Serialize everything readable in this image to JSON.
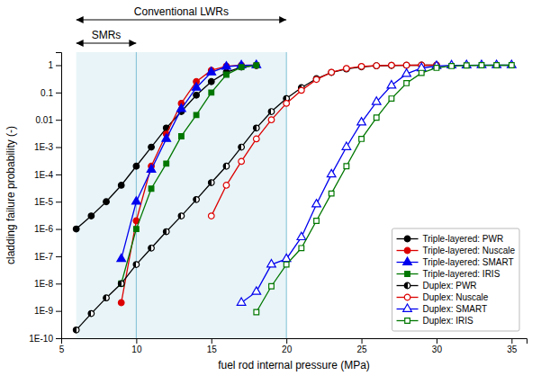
{
  "chart_data": {
    "type": "line",
    "xlabel": "fuel rod internal pressure (MPa)",
    "ylabel": "cladding failure probability (-)",
    "log": "y",
    "grid": false,
    "legend": "lower right",
    "xlim": [
      5,
      36
    ],
    "xticks": [
      5,
      10,
      15,
      20,
      25,
      30,
      35
    ],
    "ylim": [
      1e-10,
      3
    ],
    "yticks": [
      {
        "value": 1e-10,
        "label": "1E-10"
      },
      {
        "value": 1e-09,
        "label": "1E-9"
      },
      {
        "value": 1e-08,
        "label": "1E-8"
      },
      {
        "value": 1e-07,
        "label": "1E-7"
      },
      {
        "value": 1e-06,
        "label": "1E-6"
      },
      {
        "value": 1e-05,
        "label": "1E-5"
      },
      {
        "value": 0.0001,
        "label": "1E-4"
      },
      {
        "value": 0.001,
        "label": "1E-3"
      },
      0.01,
      0.1,
      1
    ],
    "shaded_regions": [
      {
        "x0": 6.0,
        "x1": 20.0,
        "color": "#e8f4f8"
      }
    ],
    "vlines": [
      {
        "x": 10.0,
        "color": "#7fbfd4"
      },
      {
        "x": 20.0,
        "color": "#7fbfd4"
      }
    ],
    "annotations": [
      {
        "text": "Conventional LWRs",
        "x0": 6.0,
        "x1": 20.0
      },
      {
        "text": "SMRs",
        "x0": 6.0,
        "x1": 10.0
      }
    ],
    "series": [
      {
        "name": "Triple-layered: PWR",
        "color": "#000000",
        "marker": "circle",
        "line_style": "solid",
        "x": [
          6,
          7,
          8,
          9,
          10,
          11,
          12,
          13,
          14,
          15,
          16,
          17,
          18
        ],
        "values": [
          1e-06,
          3e-06,
          1e-05,
          4e-05,
          0.0002,
          0.001,
          0.005,
          0.02,
          0.08,
          0.25,
          0.55,
          0.85,
          0.97
        ]
      },
      {
        "name": "Triple-layered: Nuscale",
        "color": "#dd0000",
        "marker": "circle",
        "line_style": "solid",
        "x": [
          9,
          10,
          11,
          12,
          13,
          14,
          15,
          16,
          17,
          18
        ],
        "values": [
          2e-09,
          2e-06,
          0.0002,
          0.003,
          0.04,
          0.25,
          0.65,
          0.92,
          0.99,
          1.0
        ]
      },
      {
        "name": "Triple-layered: SMART",
        "color": "#0000ee",
        "marker": "triangle",
        "line_style": "solid",
        "x": [
          9,
          10,
          11,
          12,
          13,
          14,
          15,
          16,
          17,
          18
        ],
        "values": [
          8e-08,
          1e-05,
          0.00015,
          0.002,
          0.025,
          0.15,
          0.55,
          0.88,
          0.98,
          1.0
        ]
      },
      {
        "name": "Triple-layered: IRIS",
        "color": "#007700",
        "marker": "square",
        "line_style": "solid",
        "x": [
          9,
          10,
          11,
          12,
          13,
          14,
          15,
          16,
          17,
          18
        ],
        "values": [
          1e-08,
          1e-06,
          3e-05,
          0.00025,
          0.0025,
          0.015,
          0.1,
          0.45,
          0.85,
          0.99
        ]
      },
      {
        "name": "Duplex: PWR",
        "color": "#000000",
        "marker": "circle-half-left",
        "line_style": "solid",
        "x": [
          6,
          7,
          8,
          9,
          10,
          11,
          12,
          13,
          14,
          15,
          16,
          17,
          18,
          19,
          20,
          21,
          22,
          23,
          24,
          25,
          26,
          27,
          28,
          29,
          30
        ],
        "values": [
          2e-10,
          8e-10,
          3e-09,
          1e-08,
          5e-08,
          2e-07,
          8e-07,
          3e-06,
          1.2e-05,
          5e-05,
          0.0002,
          0.001,
          0.005,
          0.02,
          0.06,
          0.15,
          0.32,
          0.54,
          0.73,
          0.87,
          0.95,
          0.98,
          0.995,
          0.999,
          1.0
        ]
      },
      {
        "name": "Duplex: Nuscale",
        "color": "#dd0000",
        "marker": "circle-open",
        "line_style": "solid",
        "x": [
          15,
          16,
          17,
          18,
          19,
          20,
          21,
          22,
          23,
          24,
          25,
          26,
          27,
          28,
          29,
          30
        ],
        "values": [
          3e-06,
          4e-05,
          0.0003,
          0.002,
          0.01,
          0.04,
          0.12,
          0.3,
          0.55,
          0.76,
          0.9,
          0.96,
          0.99,
          0.998,
          1.0,
          1.0
        ]
      },
      {
        "name": "Duplex: SMART",
        "color": "#0000ee",
        "marker": "triangle-open",
        "line_style": "solid",
        "x": [
          17,
          18,
          19,
          20,
          21,
          22,
          23,
          24,
          25,
          26,
          27,
          28,
          29,
          30,
          31,
          32,
          33,
          34,
          35
        ],
        "values": [
          2e-09,
          5e-09,
          5e-08,
          8e-08,
          5e-07,
          8e-06,
          0.0001,
          0.001,
          0.008,
          0.045,
          0.18,
          0.48,
          0.78,
          0.93,
          0.98,
          0.996,
          0.999,
          1.0,
          1.0
        ]
      },
      {
        "name": "Duplex: IRIS",
        "color": "#007700",
        "marker": "square-open",
        "line_style": "solid",
        "x": [
          18,
          19,
          20,
          21,
          22,
          23,
          24,
          25,
          26,
          27,
          28,
          29,
          30,
          31,
          32,
          33,
          34,
          35
        ],
        "values": [
          9e-10,
          8e-09,
          5e-08,
          2e-07,
          2e-06,
          2e-05,
          0.0002,
          0.002,
          0.012,
          0.06,
          0.22,
          0.52,
          0.8,
          0.93,
          0.98,
          0.995,
          0.999,
          1.0
        ]
      }
    ]
  }
}
